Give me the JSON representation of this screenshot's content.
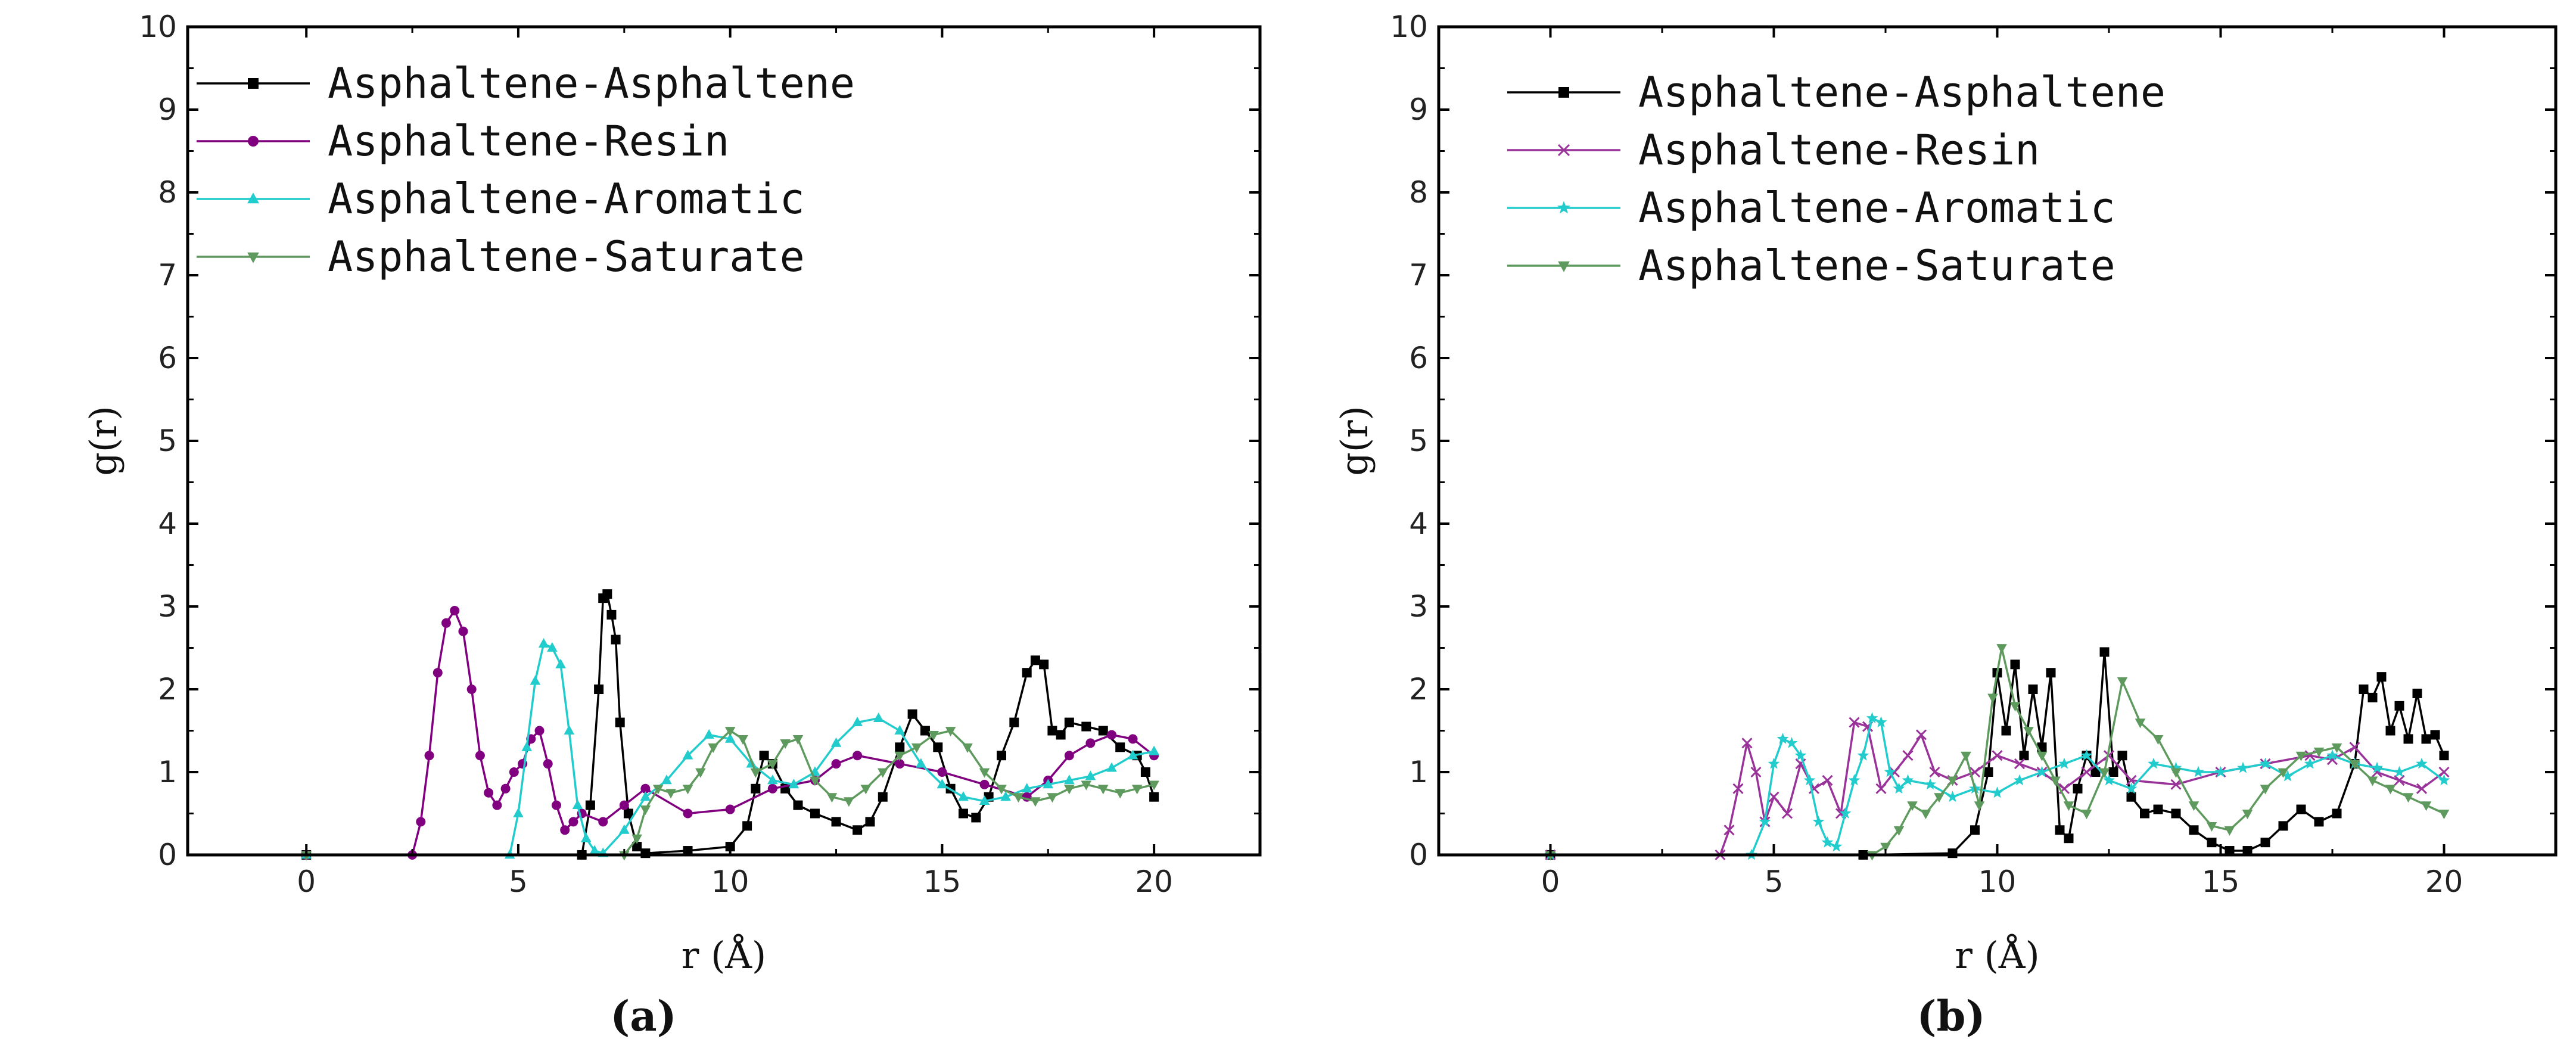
{
  "chart_data": [
    {
      "type": "line",
      "panel_label": "(a)",
      "xlabel": "r (Å)",
      "ylabel": "g(r)",
      "xlim": [
        -2.8,
        22.5
      ],
      "ylim": [
        0,
        10
      ],
      "xticks": [
        0,
        5,
        10,
        15,
        20
      ],
      "yticks": [
        0,
        1,
        2,
        3,
        4,
        5,
        6,
        7,
        8,
        9,
        10
      ],
      "legend_position": "top-left",
      "series": [
        {
          "name": "Asphaltene-Asphaltene",
          "color": "#000000",
          "marker": "square",
          "x": [
            0,
            6.5,
            6.7,
            6.9,
            7.0,
            7.1,
            7.2,
            7.3,
            7.4,
            7.6,
            7.8,
            8.0,
            9.0,
            10.0,
            10.4,
            10.6,
            10.8,
            11.0,
            11.3,
            11.6,
            12.0,
            12.5,
            13.0,
            13.3,
            13.6,
            14.0,
            14.3,
            14.6,
            14.9,
            15.2,
            15.5,
            15.8,
            16.1,
            16.4,
            16.7,
            17.0,
            17.2,
            17.4,
            17.6,
            17.8,
            18.0,
            18.4,
            18.8,
            19.2,
            19.6,
            19.8,
            20.0
          ],
          "y": [
            0,
            0,
            0.6,
            2.0,
            3.1,
            3.15,
            2.9,
            2.6,
            1.6,
            0.5,
            0.1,
            0.02,
            0.05,
            0.1,
            0.35,
            0.8,
            1.2,
            1.1,
            0.8,
            0.6,
            0.5,
            0.4,
            0.3,
            0.4,
            0.7,
            1.3,
            1.7,
            1.5,
            1.3,
            0.8,
            0.5,
            0.45,
            0.7,
            1.2,
            1.6,
            2.2,
            2.35,
            2.3,
            1.5,
            1.45,
            1.6,
            1.55,
            1.5,
            1.3,
            1.2,
            1.0,
            0.7
          ]
        },
        {
          "name": "Asphaltene-Resin",
          "color": "#800080",
          "marker": "circle",
          "x": [
            0,
            2.5,
            2.7,
            2.9,
            3.1,
            3.3,
            3.5,
            3.7,
            3.9,
            4.1,
            4.3,
            4.5,
            4.7,
            4.9,
            5.1,
            5.3,
            5.5,
            5.7,
            5.9,
            6.1,
            6.3,
            6.5,
            7.0,
            7.5,
            8.0,
            9.0,
            10.0,
            11.0,
            12.0,
            12.5,
            13.0,
            14.0,
            15.0,
            16.0,
            17.0,
            17.5,
            18.0,
            18.5,
            19.0,
            19.5,
            20.0
          ],
          "y": [
            0,
            0,
            0.4,
            1.2,
            2.2,
            2.8,
            2.95,
            2.7,
            2.0,
            1.2,
            0.75,
            0.6,
            0.8,
            1.0,
            1.1,
            1.4,
            1.5,
            1.1,
            0.6,
            0.3,
            0.4,
            0.5,
            0.4,
            0.6,
            0.8,
            0.5,
            0.55,
            0.8,
            0.9,
            1.1,
            1.2,
            1.1,
            1.0,
            0.85,
            0.7,
            0.9,
            1.2,
            1.35,
            1.45,
            1.4,
            1.2
          ]
        },
        {
          "name": "Asphaltene-Aromatic",
          "color": "#22CCCC",
          "marker": "triangle-up",
          "x": [
            0,
            4.8,
            5.0,
            5.2,
            5.4,
            5.6,
            5.8,
            6.0,
            6.2,
            6.4,
            6.6,
            6.8,
            7.0,
            7.5,
            8.0,
            8.5,
            9.0,
            9.5,
            10.0,
            10.5,
            11.0,
            11.5,
            12.0,
            12.5,
            13.0,
            13.5,
            14.0,
            14.5,
            15.0,
            15.5,
            16.0,
            16.5,
            17.0,
            17.5,
            18.0,
            18.5,
            19.0,
            19.5,
            20.0
          ],
          "y": [
            0,
            0,
            0.5,
            1.3,
            2.1,
            2.55,
            2.5,
            2.3,
            1.5,
            0.6,
            0.2,
            0.05,
            0.02,
            0.3,
            0.7,
            0.9,
            1.2,
            1.45,
            1.4,
            1.1,
            0.9,
            0.85,
            1.0,
            1.35,
            1.6,
            1.65,
            1.5,
            1.1,
            0.85,
            0.7,
            0.65,
            0.7,
            0.8,
            0.85,
            0.9,
            0.95,
            1.05,
            1.2,
            1.25
          ]
        },
        {
          "name": "Asphaltene-Saturate",
          "color": "#5E9A5E",
          "marker": "triangle-down",
          "x": [
            0,
            7.5,
            7.8,
            8.0,
            8.3,
            8.6,
            9.0,
            9.3,
            9.6,
            10.0,
            10.3,
            10.6,
            11.0,
            11.3,
            11.6,
            12.0,
            12.4,
            12.8,
            13.2,
            13.6,
            14.0,
            14.4,
            14.8,
            15.2,
            15.6,
            16.0,
            16.4,
            16.8,
            17.2,
            17.6,
            18.0,
            18.4,
            18.8,
            19.2,
            19.6,
            20.0
          ],
          "y": [
            0,
            0,
            0.2,
            0.55,
            0.8,
            0.75,
            0.8,
            1.0,
            1.3,
            1.5,
            1.4,
            1.0,
            1.1,
            1.35,
            1.4,
            0.9,
            0.7,
            0.65,
            0.8,
            1.0,
            1.2,
            1.3,
            1.45,
            1.5,
            1.3,
            1.0,
            0.8,
            0.7,
            0.65,
            0.7,
            0.8,
            0.85,
            0.8,
            0.75,
            0.8,
            0.85
          ]
        }
      ]
    },
    {
      "type": "line",
      "panel_label": "(b)",
      "xlabel": "r (Å)",
      "ylabel": "g(r)",
      "xlim": [
        -2.5,
        22.5
      ],
      "ylim": [
        0,
        10
      ],
      "xticks": [
        0,
        5,
        10,
        15,
        20
      ],
      "yticks": [
        0,
        1,
        2,
        3,
        4,
        5,
        6,
        7,
        8,
        9,
        10
      ],
      "legend_position": "top-left",
      "series": [
        {
          "name": "Asphaltene-Asphaltene",
          "color": "#000000",
          "marker": "square",
          "x": [
            0,
            7.0,
            9.0,
            9.5,
            9.8,
            10.0,
            10.2,
            10.4,
            10.6,
            10.8,
            11.0,
            11.2,
            11.4,
            11.6,
            11.8,
            12.0,
            12.2,
            12.4,
            12.6,
            12.8,
            13.0,
            13.3,
            13.6,
            14.0,
            14.4,
            14.8,
            15.2,
            15.6,
            16.0,
            16.4,
            16.8,
            17.2,
            17.6,
            18.0,
            18.2,
            18.4,
            18.6,
            18.8,
            19.0,
            19.2,
            19.4,
            19.6,
            19.8,
            20.0
          ],
          "y": [
            0,
            0,
            0.02,
            0.3,
            1.0,
            2.2,
            1.5,
            2.3,
            1.2,
            2.0,
            1.3,
            2.2,
            0.3,
            0.2,
            0.8,
            1.2,
            1.0,
            2.45,
            1.0,
            1.2,
            0.7,
            0.5,
            0.55,
            0.5,
            0.3,
            0.15,
            0.05,
            0.05,
            0.15,
            0.35,
            0.55,
            0.4,
            0.5,
            1.1,
            2.0,
            1.9,
            2.15,
            1.5,
            1.8,
            1.4,
            1.95,
            1.4,
            1.45,
            1.2
          ]
        },
        {
          "name": "Asphaltene-Resin",
          "color": "#993399",
          "marker": "x",
          "x": [
            0,
            3.8,
            4.0,
            4.2,
            4.4,
            4.6,
            4.8,
            5.0,
            5.3,
            5.6,
            5.9,
            6.2,
            6.5,
            6.8,
            7.1,
            7.4,
            7.7,
            8.0,
            8.3,
            8.6,
            9.0,
            9.5,
            10.0,
            10.5,
            11.0,
            11.5,
            12.0,
            12.5,
            13.0,
            14.0,
            15.0,
            16.0,
            17.0,
            17.5,
            18.0,
            18.5,
            19.0,
            19.5,
            20.0
          ],
          "y": [
            0,
            0,
            0.3,
            0.8,
            1.35,
            1.0,
            0.4,
            0.7,
            0.5,
            1.1,
            0.8,
            0.9,
            0.5,
            1.6,
            1.55,
            0.8,
            1.0,
            1.2,
            1.45,
            1.0,
            0.9,
            1.0,
            1.2,
            1.1,
            1.0,
            0.8,
            1.0,
            1.2,
            0.9,
            0.85,
            1.0,
            1.1,
            1.2,
            1.15,
            1.3,
            1.0,
            0.9,
            0.8,
            1.0
          ]
        },
        {
          "name": "Asphaltene-Aromatic",
          "color": "#22CCCC",
          "marker": "star",
          "x": [
            0,
            4.5,
            4.8,
            5.0,
            5.2,
            5.4,
            5.6,
            5.8,
            6.0,
            6.2,
            6.4,
            6.6,
            6.8,
            7.0,
            7.2,
            7.4,
            7.6,
            7.8,
            8.0,
            8.5,
            9.0,
            9.5,
            10.0,
            10.5,
            11.0,
            11.5,
            12.0,
            12.5,
            13.0,
            13.5,
            14.0,
            14.5,
            15.0,
            15.5,
            16.0,
            16.5,
            17.0,
            17.5,
            18.0,
            18.5,
            19.0,
            19.5,
            20.0
          ],
          "y": [
            0,
            0,
            0.4,
            1.1,
            1.4,
            1.35,
            1.2,
            0.9,
            0.4,
            0.15,
            0.1,
            0.5,
            0.9,
            1.2,
            1.65,
            1.6,
            1.0,
            0.8,
            0.9,
            0.85,
            0.7,
            0.8,
            0.75,
            0.9,
            1.0,
            1.1,
            1.2,
            0.9,
            0.8,
            1.1,
            1.05,
            1.0,
            1.0,
            1.05,
            1.1,
            0.95,
            1.1,
            1.2,
            1.1,
            1.05,
            1.0,
            1.1,
            0.9
          ]
        },
        {
          "name": "Asphaltene-Saturate",
          "color": "#5E9A5E",
          "marker": "triangle-down",
          "x": [
            0,
            7.2,
            7.5,
            7.8,
            8.1,
            8.4,
            8.7,
            9.0,
            9.3,
            9.6,
            9.9,
            10.1,
            10.4,
            10.7,
            11.0,
            11.3,
            11.6,
            12.0,
            12.4,
            12.8,
            13.2,
            13.6,
            14.0,
            14.4,
            14.8,
            15.2,
            15.6,
            16.0,
            16.4,
            16.8,
            17.2,
            17.6,
            18.0,
            18.4,
            18.8,
            19.2,
            19.6,
            20.0
          ],
          "y": [
            0,
            0,
            0.1,
            0.3,
            0.6,
            0.5,
            0.7,
            0.9,
            1.2,
            0.6,
            1.9,
            2.5,
            1.8,
            1.5,
            1.2,
            0.9,
            0.6,
            0.5,
            1.0,
            2.1,
            1.6,
            1.4,
            1.0,
            0.6,
            0.35,
            0.3,
            0.5,
            0.8,
            1.0,
            1.2,
            1.25,
            1.3,
            1.1,
            0.9,
            0.8,
            0.7,
            0.6,
            0.5
          ]
        }
      ]
    }
  ]
}
